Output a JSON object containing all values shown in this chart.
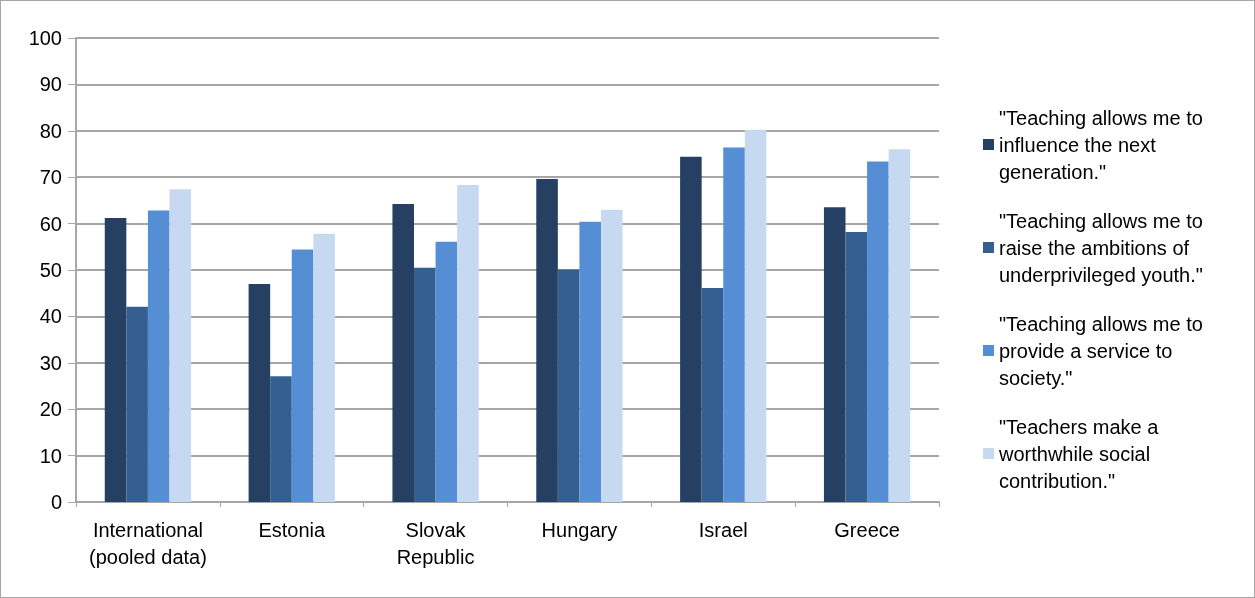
{
  "chart_data": {
    "type": "bar",
    "categories": [
      "International\n(pooled data)",
      "Estonia",
      "Slovak\nRepublic",
      "Hungary",
      "Israel",
      "Greece"
    ],
    "series": [
      {
        "name": "\"Teaching allows me to influence the next generation.\"",
        "color": "#264064",
        "values": [
          61.2,
          47.0,
          64.2,
          69.6,
          74.4,
          63.5
        ]
      },
      {
        "name": "\"Teaching allows me to raise the ambitions of underprivileged youth.\"",
        "color": "#365f91",
        "values": [
          42.1,
          27.1,
          50.5,
          50.1,
          46.1,
          58.2
        ]
      },
      {
        "name": "\"Teaching allows me to provide a service to society.\"",
        "color": "#558ed5",
        "values": [
          62.8,
          54.4,
          56.1,
          60.4,
          76.4,
          73.4
        ]
      },
      {
        "name": "\"Teachers make a worthwhile social contribution.\"",
        "color": "#c6d9f0",
        "values": [
          67.4,
          57.8,
          68.3,
          63.0,
          80.2,
          76.0
        ]
      }
    ],
    "ylim": [
      0,
      100
    ],
    "yticks": [
      0,
      10,
      20,
      30,
      40,
      50,
      60,
      70,
      80,
      90,
      100
    ],
    "grid": "y",
    "legend": "right"
  }
}
